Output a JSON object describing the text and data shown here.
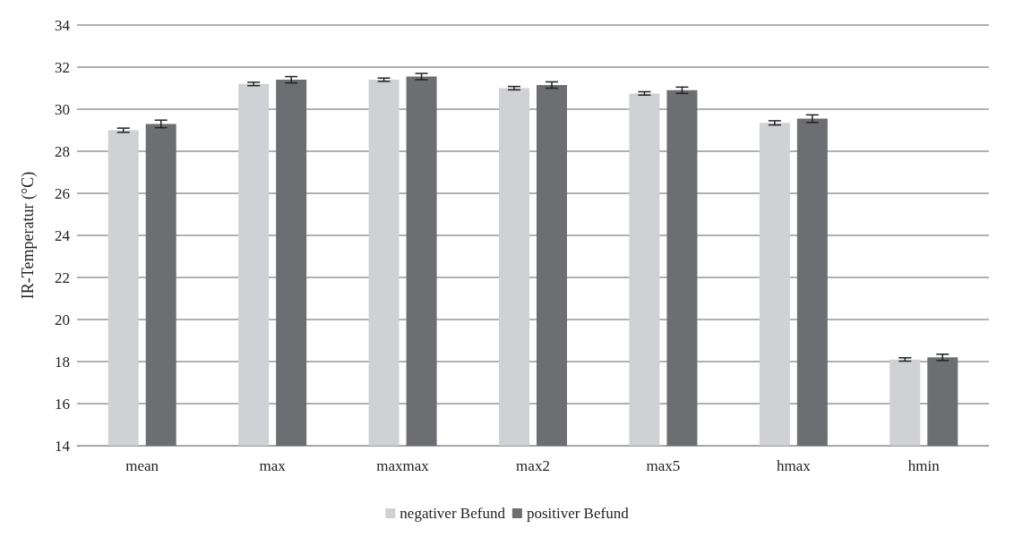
{
  "chart_data": {
    "type": "bar",
    "ylabel": "IR-Temperatur (°C)",
    "categories": [
      "mean",
      "max",
      "maxmax",
      "max2",
      "max5",
      "hmax",
      "hmin"
    ],
    "series": [
      {
        "name": "negativer Befund",
        "color": "#d0d1d4",
        "values": [
          29.0,
          31.2,
          31.4,
          31.0,
          30.75,
          29.35,
          18.1
        ],
        "errors": [
          0.1,
          0.08,
          0.08,
          0.08,
          0.08,
          0.1,
          0.08
        ]
      },
      {
        "name": "positiver Befund",
        "color": "#6d6e72",
        "values": [
          29.3,
          31.4,
          31.55,
          31.15,
          30.9,
          29.55,
          18.2
        ],
        "errors": [
          0.18,
          0.15,
          0.15,
          0.15,
          0.15,
          0.18,
          0.15
        ]
      }
    ],
    "ylim": [
      14,
      34
    ],
    "yticks": [
      14,
      16,
      18,
      20,
      22,
      24,
      26,
      28,
      30,
      32,
      34
    ],
    "grid": "y",
    "legend": "bottom"
  }
}
